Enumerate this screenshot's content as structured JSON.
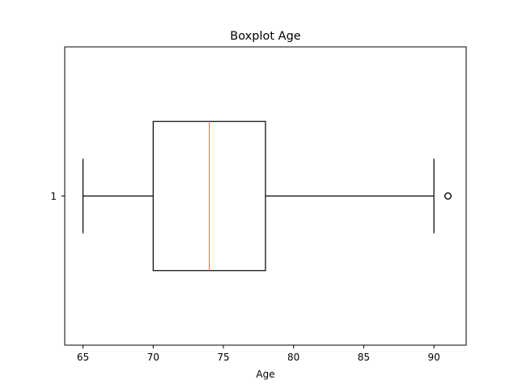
{
  "chart_data": {
    "type": "boxplot",
    "orientation": "horizontal",
    "title": "Boxplot Age",
    "xlabel": "Age",
    "ylabel": "",
    "xlim": [
      63.7,
      92.3
    ],
    "xticks": [
      65,
      70,
      75,
      80,
      85,
      90
    ],
    "xtick_labels": [
      "65",
      "70",
      "75",
      "80",
      "85",
      "90"
    ],
    "yticks": [
      1
    ],
    "ytick_labels": [
      "1"
    ],
    "grid": false,
    "boxes": [
      {
        "position": 1,
        "label": "1",
        "whisker_low": 65,
        "q1": 70,
        "median": 74,
        "q3": 78,
        "whisker_high": 90,
        "outliers": [
          91
        ]
      }
    ],
    "colors": {
      "box": "#000000",
      "median": "#ff7f0e",
      "whisker": "#000000",
      "flier": "#000000",
      "axes": "#000000"
    }
  }
}
